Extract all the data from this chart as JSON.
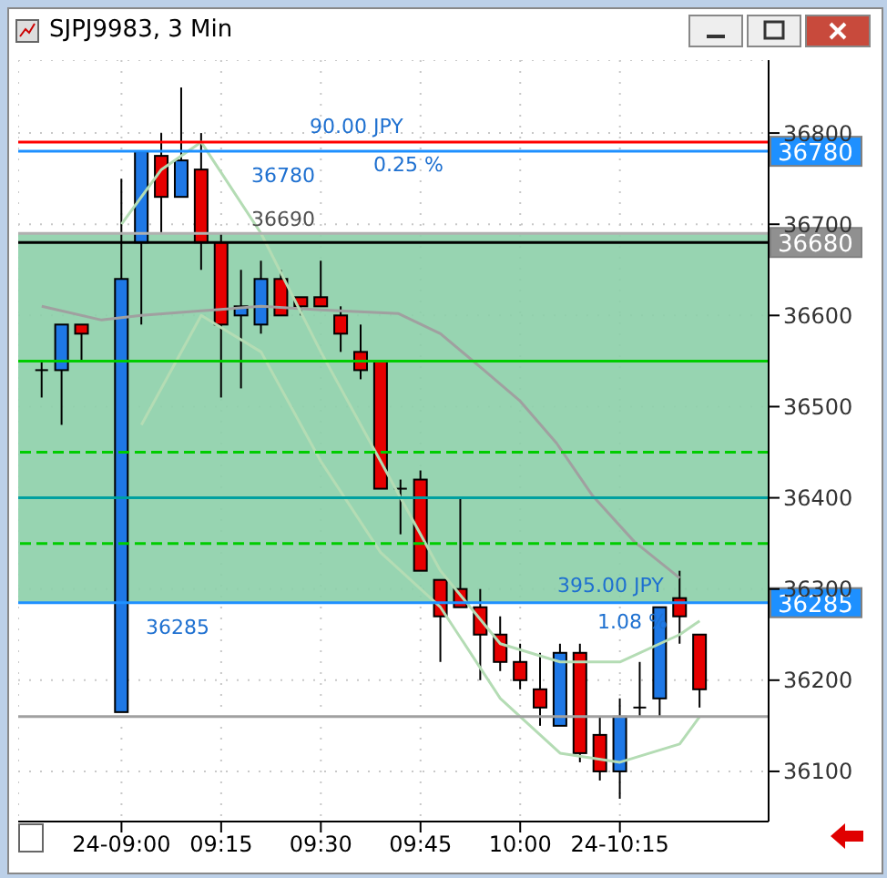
{
  "chart_data": {
    "type": "candlestick",
    "title": "SJPJ9983, 3 Min",
    "x": [
      8.8,
      8.85,
      8.9,
      9.0,
      9.05,
      9.1,
      9.15,
      9.2,
      9.25,
      9.3,
      9.35,
      9.4,
      9.45,
      9.5,
      9.55,
      9.6,
      9.65,
      9.7,
      9.75,
      9.8,
      9.85,
      9.9,
      9.95,
      10.0,
      10.05,
      10.1,
      10.15,
      10.2,
      10.25,
      10.3,
      10.35,
      10.4,
      10.45
    ],
    "ohlc": [
      [
        36540,
        36550,
        36510,
        36540
      ],
      [
        36540,
        36590,
        36480,
        36590
      ],
      [
        36590,
        36590,
        36550,
        36580
      ],
      [
        36165,
        36750,
        36165,
        36640
      ],
      [
        36680,
        36780,
        36590,
        36780
      ],
      [
        36775,
        36800,
        36690,
        36730
      ],
      [
        36730,
        36850,
        36730,
        36770
      ],
      [
        36760,
        36800,
        36650,
        36680
      ],
      [
        36680,
        36690,
        36510,
        36590
      ],
      [
        36600,
        36650,
        36520,
        36610
      ],
      [
        36590,
        36660,
        36580,
        36640
      ],
      [
        36640,
        36650,
        36600,
        36600
      ],
      [
        36620,
        36620,
        36600,
        36610
      ],
      [
        36620,
        36660,
        36610,
        36610
      ],
      [
        36600,
        36610,
        36560,
        36580
      ],
      [
        36560,
        36590,
        36530,
        36540
      ],
      [
        36550,
        36550,
        36410,
        36410
      ],
      [
        36410,
        36420,
        36360,
        36410
      ],
      [
        36420,
        36430,
        36320,
        36320
      ],
      [
        36310,
        36310,
        36220,
        36270
      ],
      [
        36300,
        36400,
        36280,
        36280
      ],
      [
        36280,
        36300,
        36200,
        36250
      ],
      [
        36250,
        36270,
        36210,
        36220
      ],
      [
        36220,
        36240,
        36190,
        36200
      ],
      [
        36190,
        36230,
        36150,
        36170
      ],
      [
        36150,
        36240,
        36150,
        36230
      ],
      [
        36230,
        36240,
        36110,
        36120
      ],
      [
        36140,
        36160,
        36090,
        36100
      ],
      [
        36100,
        36180,
        36070,
        36160
      ],
      [
        36170,
        36220,
        36160,
        36170
      ],
      [
        36180,
        36280,
        36160,
        36280
      ],
      [
        36290,
        36320,
        36240,
        36270
      ],
      [
        36250,
        36250,
        36170,
        36190
      ]
    ],
    "colors": [
      "#000000",
      "#1e78e6",
      "#e60000",
      "#1e78e6",
      "#1e78e6",
      "#e60000",
      "#1e78e6",
      "#e60000",
      "#e60000",
      "#1e78e6",
      "#1e78e6",
      "#e60000",
      "#e60000",
      "#e60000",
      "#e60000",
      "#e60000",
      "#e60000",
      "#000000",
      "#e60000",
      "#e60000",
      "#e60000",
      "#e60000",
      "#e60000",
      "#e60000",
      "#e60000",
      "#1e78e6",
      "#e60000",
      "#e60000",
      "#1e78e6",
      "#000000",
      "#1e78e6",
      "#e60000",
      "#e60000"
    ],
    "series": [
      {
        "type": "line",
        "color": "#a0a0a0",
        "x": [
          8.8,
          8.95,
          9.05,
          9.2,
          9.35,
          9.5,
          9.695,
          9.8,
          9.909,
          10.0,
          10.091,
          10.182,
          10.286,
          10.4
        ],
        "values": [
          36610,
          36595,
          36600,
          36605,
          36610,
          36606,
          36602,
          36580,
          36540,
          36506,
          36460,
          36402,
          36352,
          36312
        ]
      },
      {
        "type": "line",
        "color": "#b4dcb4",
        "x": [
          9.0,
          9.1,
          9.2,
          9.35,
          9.5,
          9.65,
          9.8,
          9.95,
          10.1,
          10.25,
          10.4,
          10.45
        ],
        "values": [
          36700,
          36760,
          36790,
          36690,
          36560,
          36440,
          36320,
          36240,
          36220,
          36220,
          36250,
          36265
        ]
      },
      {
        "type": "line",
        "color": "#b4dcb4",
        "x": [
          9.05,
          9.2,
          9.35,
          9.5,
          9.65,
          9.8,
          9.95,
          10.1,
          10.25,
          10.4,
          10.45
        ],
        "values": [
          36480,
          36600,
          36560,
          36440,
          36340,
          36280,
          36180,
          36120,
          36110,
          36130,
          36160
        ]
      }
    ],
    "xlim": [
      8.741,
      10.623
    ],
    "ylim": [
      36045,
      36880
    ],
    "xticks": [
      {
        "value": 9,
        "label": "24-09:00"
      },
      {
        "value": 9.25,
        "label": "09:15"
      },
      {
        "value": 9.5,
        "label": "09:30"
      },
      {
        "value": 9.75,
        "label": "09:45"
      },
      {
        "value": 10,
        "label": "10:00"
      },
      {
        "value": 10.25,
        "label": "24-10:15"
      }
    ],
    "yticks": [
      36100,
      36200,
      36300,
      36400,
      36500,
      36600,
      36700,
      36800
    ],
    "grid": true,
    "bands": [
      {
        "axis": "y",
        "from": 36285,
        "to": 36690,
        "color": "#8ccfa8"
      }
    ],
    "ref_lines": [
      {
        "axis": "y",
        "value": 36790,
        "color": "#ff0000"
      },
      {
        "axis": "y",
        "value": 36780,
        "color": "#1e90ff",
        "label": "36780"
      },
      {
        "axis": "y",
        "value": 36680,
        "color": "#000000",
        "label": "36680"
      },
      {
        "axis": "y",
        "value": 36690,
        "color": "#b0b0b0"
      },
      {
        "axis": "y",
        "value": 36550,
        "color": "#00cc00"
      },
      {
        "axis": "y",
        "value": 36450,
        "color": "#00cc00",
        "line_style": "dashed"
      },
      {
        "axis": "y",
        "value": 36400,
        "color": "#00a0a0"
      },
      {
        "axis": "y",
        "value": 36350,
        "color": "#00cc00",
        "line_style": "dashed"
      },
      {
        "axis": "y",
        "value": 36285,
        "color": "#1e90ff",
        "label": "36285"
      },
      {
        "axis": "y",
        "value": 36160,
        "color": "#a0a0a0"
      }
    ],
    "annotations": [
      "90.00 JPY",
      "0.25 %",
      "36780",
      "36690",
      "36285",
      "395.00 JPY",
      "1.08 %"
    ]
  }
}
